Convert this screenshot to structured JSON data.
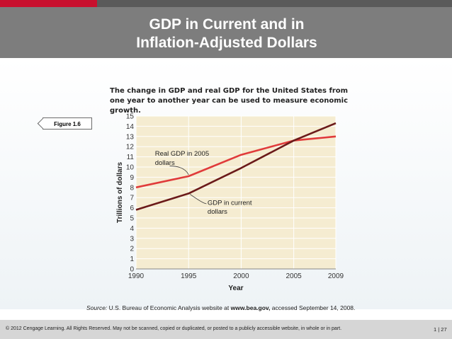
{
  "slide": {
    "title_line1": "GDP in Current and in",
    "title_line2": "Inflation-Adjusted Dollars",
    "figure_label": "Figure 1.6",
    "caption": "The change in GDP and real GDP for the United States from one year to another year can be used to measure economic growth.",
    "source_prefix": "Source:",
    "source_text": " U.S. Bureau of Economic Analysis website at ",
    "source_url": "www.bea.gov,",
    "source_suffix": " accessed September 14, 2008.",
    "copyright": "© 2012 Cengage Learning. All Rights Reserved. May not be scanned, copied or duplicated, or posted to a publicly accessible website, in whole or in part.",
    "page": "1 | 27"
  },
  "colors": {
    "accent_red": "#c8102e",
    "header_gray": "#7d7d7d",
    "plot_bg": "#f5ecd1",
    "real_line": "#e03b3b",
    "nominal_line": "#6b1a1a"
  },
  "chart_data": {
    "type": "line",
    "xlabel": "Year",
    "ylabel": "Trillions of dollars",
    "x": [
      1990,
      1995,
      2000,
      2005,
      2009
    ],
    "x_tick_labels": [
      "1990",
      "1995",
      "2000",
      "2005",
      "2009"
    ],
    "y_ticks": [
      "0",
      "1",
      "2",
      "3",
      "4",
      "5",
      "6",
      "7",
      "8",
      "9",
      "10",
      "11",
      "12",
      "13",
      "14",
      "15"
    ],
    "ylim": [
      0,
      15
    ],
    "grid": true,
    "series": [
      {
        "name": "Real GDP in 2005 dollars",
        "label_line1": "Real GDP in 2005",
        "label_line2": "dollars",
        "color": "#e03b3b",
        "values": [
          8.0,
          9.1,
          11.2,
          12.6,
          13.0
        ]
      },
      {
        "name": "GDP in current dollars",
        "label_line1": "GDP in current",
        "label_line2": "dollars",
        "color": "#6b1a1a",
        "values": [
          5.8,
          7.4,
          9.9,
          12.6,
          14.3
        ]
      }
    ]
  }
}
